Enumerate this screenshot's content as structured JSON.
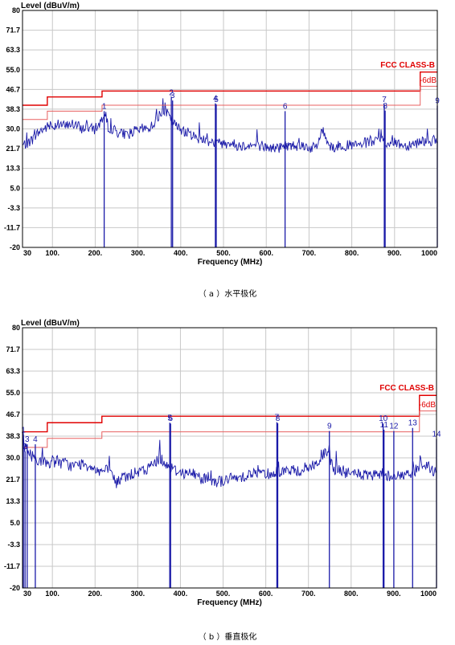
{
  "chart_data": [
    {
      "type": "line",
      "caption": "（ a ）水平极化",
      "ylabel": "Level (dBuV/m)",
      "xlabel": "Frequency (MHz)",
      "xlim": [
        30,
        1000
      ],
      "ylim": [
        -20,
        80
      ],
      "yticks": [
        "80",
        "71.7",
        "63.3",
        "55.0",
        "46.7",
        "38.3",
        "30.0",
        "21.7",
        "13.3",
        "5.0",
        "-3.3",
        "-11.7",
        "-20"
      ],
      "xticks": [
        {
          "x": 30,
          "label": "30"
        },
        {
          "x": 100,
          "label": "100."
        },
        {
          "x": 200,
          "label": "200."
        },
        {
          "x": 300,
          "label": "300."
        },
        {
          "x": 400,
          "label": "400."
        },
        {
          "x": 500,
          "label": "500."
        },
        {
          "x": 600,
          "label": "600."
        },
        {
          "x": 700,
          "label": "700."
        },
        {
          "x": 800,
          "label": "800."
        },
        {
          "x": 900,
          "label": "900."
        },
        {
          "x": 1000,
          "label": "1000"
        }
      ],
      "grid": true,
      "limit_label": "FCC CLASS-B",
      "margin_label": "-6dB",
      "limit_line": [
        [
          30,
          40.0
        ],
        [
          88,
          40.0
        ],
        [
          88,
          43.5
        ],
        [
          216,
          43.5
        ],
        [
          216,
          46.0
        ],
        [
          960,
          46.0
        ],
        [
          960,
          54.0
        ],
        [
          1000,
          54.0
        ]
      ],
      "margin_line": [
        [
          30,
          34.0
        ],
        [
          88,
          34.0
        ],
        [
          88,
          37.5
        ],
        [
          216,
          37.5
        ],
        [
          216,
          40.0
        ],
        [
          960,
          40.0
        ],
        [
          960,
          48.0
        ],
        [
          1000,
          48.0
        ]
      ],
      "markers": [
        {
          "id": "1",
          "x": 221,
          "y": 37.5
        },
        {
          "id": "2",
          "x": 378,
          "y": 43.2
        },
        {
          "id": "3",
          "x": 381,
          "y": 42.0
        },
        {
          "id": "4",
          "x": 481,
          "y": 40.8
        },
        {
          "id": "5",
          "x": 483,
          "y": 40.4
        },
        {
          "id": "6",
          "x": 644,
          "y": 37.5
        },
        {
          "id": "7",
          "x": 876,
          "y": 40.4
        },
        {
          "id": "8",
          "x": 878,
          "y": 37.7
        },
        {
          "id": "9",
          "x": 1000,
          "y": 39.8
        }
      ],
      "series": [
        {
          "color": "#1a1aa8",
          "x": [
            30,
            40,
            50,
            60,
            70,
            80,
            90,
            100,
            110,
            120,
            130,
            140,
            150,
            160,
            170,
            180,
            190,
            200,
            210,
            220,
            225,
            230,
            240,
            250,
            260,
            270,
            280,
            290,
            300,
            310,
            320,
            330,
            340,
            350,
            360,
            370,
            380,
            390,
            400,
            410,
            420,
            430,
            440,
            450,
            460,
            470,
            480,
            490,
            500,
            510,
            520,
            530,
            540,
            550,
            560,
            570,
            580,
            590,
            600,
            610,
            620,
            630,
            640,
            650,
            660,
            670,
            680,
            690,
            700,
            710,
            720,
            730,
            740,
            750,
            760,
            770,
            780,
            790,
            800,
            810,
            820,
            830,
            840,
            850,
            860,
            870,
            880,
            890,
            900,
            910,
            920,
            930,
            940,
            950,
            960,
            970,
            980,
            990,
            1000
          ],
          "y": [
            23,
            24,
            25,
            27,
            29,
            30,
            31,
            31,
            32,
            32,
            31,
            32,
            32,
            31,
            30,
            31,
            30,
            30,
            32,
            36,
            35,
            31,
            30,
            29,
            28,
            28,
            28,
            29,
            29,
            30,
            30,
            31,
            33,
            36,
            38,
            36,
            33,
            31,
            30,
            29,
            28,
            27,
            26,
            26,
            25,
            25,
            24,
            24,
            24,
            24,
            24,
            23,
            23,
            23,
            23,
            23,
            23,
            23,
            22,
            22,
            22,
            22,
            23,
            23,
            23,
            23,
            23,
            23,
            22,
            22,
            23,
            30,
            26,
            23,
            22,
            23,
            23,
            23,
            23,
            23,
            23,
            24,
            24,
            25,
            24,
            26,
            24,
            24,
            24,
            24,
            23,
            23,
            24,
            24,
            25,
            25,
            25,
            25,
            25
          ]
        }
      ]
    },
    {
      "type": "line",
      "caption": "（ b ）垂直极化",
      "ylabel": "Level (dBuV/m)",
      "xlabel": "Frequency (MHz)",
      "xlim": [
        30,
        1000
      ],
      "ylim": [
        -20,
        80
      ],
      "yticks": [
        "80",
        "71.7",
        "63.3",
        "55.0",
        "46.7",
        "38.3",
        "30.0",
        "21.7",
        "13.3",
        "5.0",
        "-3.3",
        "-11.7",
        "-20"
      ],
      "xticks": [
        {
          "x": 30,
          "label": "30"
        },
        {
          "x": 100,
          "label": "100."
        },
        {
          "x": 200,
          "label": "200."
        },
        {
          "x": 300,
          "label": "300."
        },
        {
          "x": 400,
          "label": "400."
        },
        {
          "x": 500,
          "label": "500."
        },
        {
          "x": 600,
          "label": "600."
        },
        {
          "x": 700,
          "label": "700."
        },
        {
          "x": 800,
          "label": "800."
        },
        {
          "x": 900,
          "label": "900."
        },
        {
          "x": 1000,
          "label": "1000"
        }
      ],
      "grid": true,
      "limit_label": "FCC CLASS-B",
      "margin_label": "-6dB",
      "limit_line": [
        [
          30,
          40.0
        ],
        [
          88,
          40.0
        ],
        [
          88,
          43.5
        ],
        [
          216,
          43.5
        ],
        [
          216,
          46.0
        ],
        [
          960,
          46.0
        ],
        [
          960,
          54.0
        ],
        [
          1000,
          54.0
        ]
      ],
      "margin_line": [
        [
          30,
          34.0
        ],
        [
          88,
          34.0
        ],
        [
          88,
          37.5
        ],
        [
          216,
          37.5
        ],
        [
          216,
          40.0
        ],
        [
          960,
          40.0
        ],
        [
          960,
          48.0
        ],
        [
          1000,
          48.0
        ]
      ],
      "markers": [
        {
          "id": "1",
          "x": 32,
          "y": 38.8
        },
        {
          "id": "2",
          "x": 36,
          "y": 32.5
        },
        {
          "id": "3",
          "x": 41,
          "y": 35.2
        },
        {
          "id": "4",
          "x": 60,
          "y": 35.2
        },
        {
          "id": "5",
          "x": 375,
          "y": 43.5
        },
        {
          "id": "6",
          "x": 377,
          "y": 43.2
        },
        {
          "id": "7",
          "x": 626,
          "y": 43.7
        },
        {
          "id": "8",
          "x": 628,
          "y": 43.3
        },
        {
          "id": "9",
          "x": 749,
          "y": 40.3
        },
        {
          "id": "10",
          "x": 875,
          "y": 43.2
        },
        {
          "id": "11",
          "x": 877,
          "y": 40.8
        },
        {
          "id": "12",
          "x": 900,
          "y": 40.3
        },
        {
          "id": "13",
          "x": 944,
          "y": 41.5
        },
        {
          "id": "14",
          "x": 1000,
          "y": 37.3
        }
      ],
      "series": [
        {
          "color": "#1a1aa8",
          "x": [
            30,
            40,
            50,
            60,
            70,
            80,
            90,
            100,
            110,
            120,
            130,
            140,
            150,
            160,
            170,
            180,
            190,
            200,
            210,
            220,
            230,
            240,
            250,
            260,
            270,
            280,
            290,
            300,
            310,
            320,
            330,
            340,
            350,
            360,
            370,
            380,
            390,
            400,
            410,
            420,
            430,
            440,
            450,
            460,
            470,
            480,
            490,
            500,
            510,
            520,
            530,
            540,
            550,
            560,
            570,
            580,
            590,
            600,
            610,
            620,
            630,
            640,
            650,
            660,
            670,
            680,
            690,
            700,
            710,
            720,
            730,
            740,
            750,
            760,
            770,
            780,
            790,
            800,
            810,
            820,
            830,
            840,
            850,
            860,
            870,
            880,
            890,
            900,
            910,
            920,
            930,
            940,
            950,
            960,
            970,
            980,
            990,
            1000
          ],
          "y": [
            36,
            33,
            31,
            30,
            29,
            28,
            28,
            28,
            29,
            28,
            28,
            27,
            27,
            27,
            28,
            27,
            27,
            26,
            25,
            25,
            25,
            24,
            20,
            22,
            23,
            23,
            24,
            24,
            25,
            25,
            27,
            28,
            30,
            29,
            27,
            26,
            25,
            25,
            24,
            24,
            24,
            23,
            22,
            22,
            22,
            21,
            21,
            21,
            22,
            22,
            22,
            23,
            23,
            24,
            24,
            24,
            24,
            24,
            24,
            24,
            25,
            25,
            25,
            25,
            25,
            25,
            26,
            26,
            27,
            28,
            30,
            32,
            29,
            26,
            25,
            25,
            24,
            24,
            24,
            24,
            23,
            23,
            23,
            23,
            24,
            24,
            23,
            23,
            23,
            23,
            24,
            24,
            25,
            26,
            26,
            27,
            25,
            25
          ]
        }
      ]
    }
  ]
}
